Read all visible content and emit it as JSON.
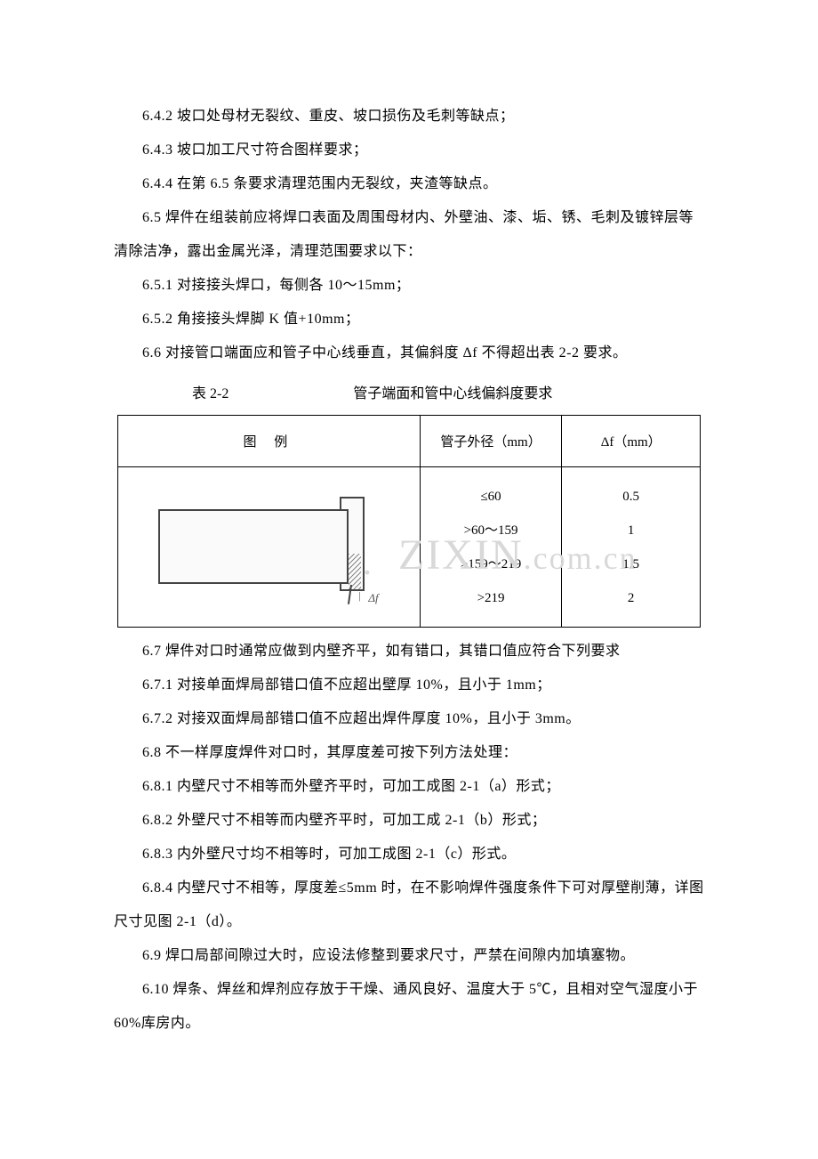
{
  "paragraphs": {
    "p1": "6.4.2 坡口处母材无裂纹、重皮、坡口损伤及毛刺等缺点；",
    "p2": "6.4.3 坡口加工尺寸符合图样要求；",
    "p3": "6.4.4 在第 6.5 条要求清理范围内无裂纹，夹渣等缺点。",
    "p4": "6.5 焊件在组装前应将焊口表面及周围母材内、外壁油、漆、垢、锈、毛刺及镀锌层等清除洁净，露出金属光泽，清理范围要求以下：",
    "p5": "6.5.1 对接接头焊口，每侧各 10～15mm；",
    "p6": "6.5.2 角接接头焊脚 K 值+10mm；",
    "p7": "6.6 对接管口端面应和管子中心线垂直，其偏斜度 Δf 不得超出表 2-2 要求。",
    "p8": "6.7 焊件对口时通常应做到内壁齐平，如有错口，其错口值应符合下列要求",
    "p9": "6.7.1 对接单面焊局部错口值不应超出壁厚 10%，且小于 1mm；",
    "p10": "6.7.2 对接双面焊局部错口值不应超出焊件厚度 10%，且小于 3mm。",
    "p11": "6.8 不一样厚度焊件对口时，其厚度差可按下列方法处理：",
    "p12": "6.8.1 内壁尺寸不相等而外壁齐平时，可加工成图 2-1（a）形式；",
    "p13": "6.8.2 外壁尺寸不相等而内壁齐平时，可加工成 2-1（b）形式；",
    "p14": "6.8.3 内外壁尺寸均不相等时，可加工成图 2-1（c）形式。",
    "p15": "6.8.4 内壁尺寸不相等，厚度差≤5mm 时，在不影响焊件强度条件下可对厚壁削薄，详图尺寸见图 2-1（d）。",
    "p16": "6.9 焊口局部间隙过大时，应设法修整到要求尺寸，严禁在间隙内加填塞物。",
    "p17": "6.10 焊条、焊丝和焊剂应存放于干燥、通风良好、温度大于 5℃，且相对空气湿度小于 60%库房内。"
  },
  "table": {
    "title_left": "表 2-2",
    "title_right": "管子端面和管中心线偏斜度要求",
    "headers": {
      "h1": "图    例",
      "h2": "管子外径（mm）",
      "h3": "Δf（mm）"
    },
    "diagram_label": "Δf",
    "col2_rows": {
      "r1": "≤60",
      "r2": ">60～159",
      "r3": ">159～219",
      "r4": ">219"
    },
    "col3_rows": {
      "r1": "0.5",
      "r2": "1",
      "r3": "1.5",
      "r4": "2"
    }
  },
  "watermark": {
    "left": "WWW",
    "right": "ZIXIN",
    "domain": ".com.cn",
    "dot": "."
  },
  "colors": {
    "text": "#000000",
    "border": "#000000",
    "background": "#ffffff",
    "watermark": "#d8d8d8",
    "diagram_line": "#444444"
  },
  "typography": {
    "body_fontsize": 16,
    "table_fontsize": 15,
    "line_height": 38,
    "font_family": "SimSun"
  }
}
